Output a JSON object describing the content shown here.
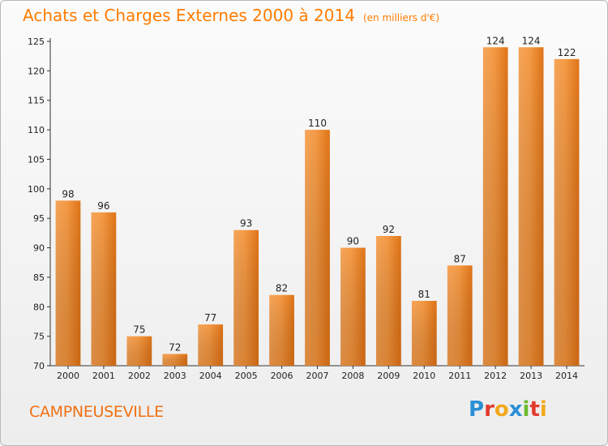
{
  "chart_data": {
    "type": "bar",
    "title": "Achats et Charges Externes 2000 à 2014",
    "subtitle": "(en milliers d'€)",
    "categories": [
      "2000",
      "2001",
      "2002",
      "2003",
      "2004",
      "2005",
      "2006",
      "2007",
      "2008",
      "2009",
      "2010",
      "2011",
      "2012",
      "2013",
      "2014"
    ],
    "values": [
      98,
      96,
      75,
      72,
      77,
      93,
      82,
      110,
      90,
      92,
      81,
      87,
      124,
      124,
      122
    ],
    "ylim": [
      70,
      125
    ],
    "yticks": [
      70,
      75,
      80,
      85,
      90,
      95,
      100,
      105,
      110,
      115,
      120,
      125
    ],
    "xlabel": "",
    "ylabel": "",
    "grid": false,
    "bar_color": "#f28a2c"
  },
  "footer": {
    "town": "CAMPNEUSEVILLE",
    "brand_letters": [
      {
        "ch": "P",
        "color": "#2c8fd6"
      },
      {
        "ch": "r",
        "color": "#e23b2e"
      },
      {
        "ch": "o",
        "color": "#f2a81d"
      },
      {
        "ch": "x",
        "color": "#2c8fd6"
      },
      {
        "ch": "i",
        "color": "#6cba2f"
      },
      {
        "ch": "t",
        "color": "#e23b2e"
      },
      {
        "ch": "i",
        "color": "#f2a81d"
      }
    ]
  }
}
